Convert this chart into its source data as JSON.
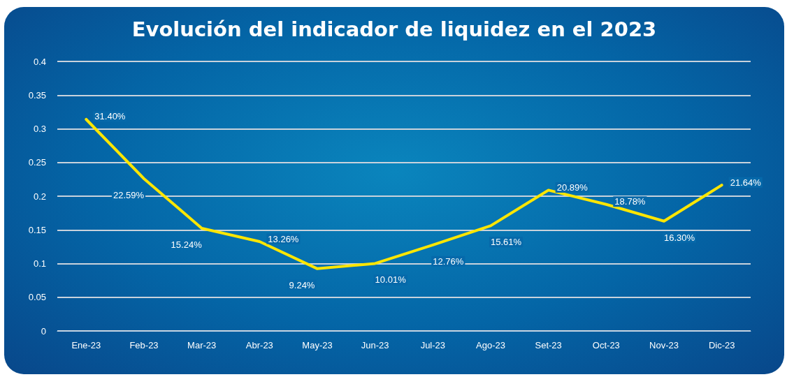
{
  "chart_data": {
    "type": "line",
    "title": "Evolución del indicador de liquidez en el 2023",
    "categories": [
      "Ene-23",
      "Feb-23",
      "Mar-23",
      "Abr-23",
      "May-23",
      "Jun-23",
      "Jul-23",
      "Ago-23",
      "Set-23",
      "Oct-23",
      "Nov-23",
      "Dic-23"
    ],
    "series": [
      {
        "color": "#ffe600",
        "values": [
          0.314,
          0.2259,
          0.1524,
          0.1326,
          0.0924,
          0.1001,
          0.1276,
          0.1561,
          0.2089,
          0.1878,
          0.163,
          0.2164
        ],
        "value_labels": [
          "31.40%",
          "22.59%",
          "15.24%",
          "13.26%",
          "9.24%",
          "10.01%",
          "12.76%",
          "15.61%",
          "20.89%",
          "18.78%",
          "16.30%",
          "21.64%"
        ]
      }
    ],
    "ylim": [
      0,
      0.4
    ],
    "yticks": [
      0,
      0.05,
      0.1,
      0.15,
      0.2,
      0.25,
      0.3,
      0.35,
      0.4
    ],
    "grid": "y",
    "marker": "none",
    "line_style": "solid"
  }
}
